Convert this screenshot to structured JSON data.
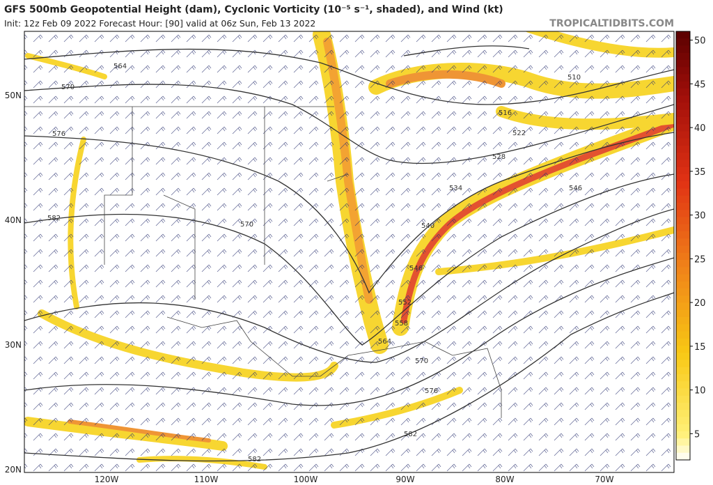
{
  "header": {
    "title": "GFS 500mb Geopotential Height (dam), Cyclonic Vorticity (10⁻⁵ s⁻¹, shaded), and Wind (kt)",
    "subtitle": "Init: 12z Feb 09 2022   Forecast Hour: [90]   valid at 06z Sun, Feb 13 2022",
    "watermark": "TROPICALTIDBITS.COM"
  },
  "map": {
    "lat_labels": [
      "50N",
      "40N",
      "30N",
      "20N"
    ],
    "lon_labels": [
      "120W",
      "110W",
      "100W",
      "90W",
      "80W",
      "70W"
    ],
    "contour_labels": [
      "564",
      "570",
      "576",
      "582",
      "570",
      "510",
      "516",
      "522",
      "528",
      "534",
      "540",
      "546",
      "546",
      "552",
      "558",
      "564",
      "570",
      "576",
      "582",
      "582"
    ]
  },
  "colorbar": {
    "clim": [
      2,
      51
    ],
    "ticks": [
      5,
      10,
      15,
      20,
      25,
      30,
      35,
      40,
      45,
      50
    ]
  }
}
